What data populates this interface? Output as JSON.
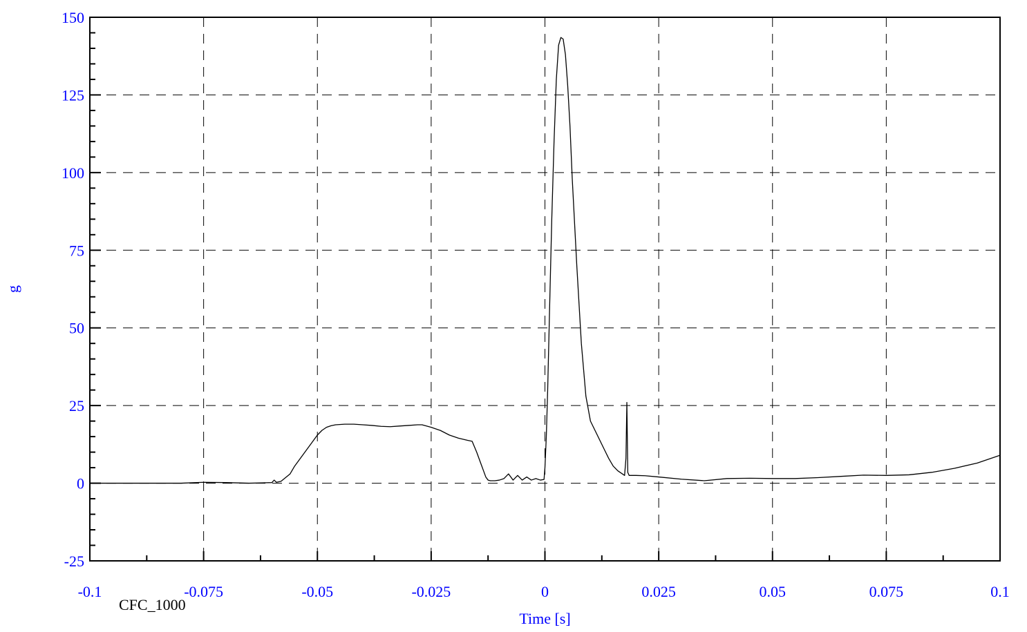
{
  "colors": {
    "axis_text": "#0000ff",
    "frame": "#000000",
    "trace": "#000000",
    "grid": "#000000",
    "annotation": "#000000",
    "background": "#ffffff"
  },
  "chart_data": {
    "type": "line",
    "title": "",
    "xlabel": "Time [s]",
    "ylabel": "g",
    "xlim": [
      -0.1,
      0.1
    ],
    "ylim": [
      -25,
      150
    ],
    "grid": true,
    "grid_style": "dashed",
    "x_ticks": [
      -0.1,
      -0.075,
      -0.05,
      -0.025,
      0,
      0.025,
      0.05,
      0.075,
      0.1
    ],
    "x_tick_labels": [
      "-0.1",
      "-0.075",
      "-0.05",
      "-0.025",
      "0",
      "0.025",
      "0.05",
      "0.075",
      "0.1"
    ],
    "y_ticks": [
      -25,
      0,
      25,
      50,
      75,
      100,
      125,
      150
    ],
    "y_tick_labels": [
      "-25",
      "0",
      "25",
      "50",
      "75",
      "100",
      "125",
      "150"
    ],
    "annotation": "CFC_1000",
    "series": [
      {
        "x": [
          -0.1,
          -0.09,
          -0.08,
          -0.075,
          -0.07,
          -0.065,
          -0.06,
          -0.0595,
          -0.059,
          -0.058,
          -0.057,
          -0.056,
          -0.055,
          -0.054,
          -0.053,
          -0.052,
          -0.051,
          -0.05,
          -0.049,
          -0.048,
          -0.047,
          -0.046,
          -0.044,
          -0.042,
          -0.04,
          -0.038,
          -0.036,
          -0.034,
          -0.032,
          -0.03,
          -0.028,
          -0.027,
          -0.025,
          -0.023,
          -0.021,
          -0.019,
          -0.017,
          -0.016,
          -0.015,
          -0.0145,
          -0.014,
          -0.0135,
          -0.013,
          -0.0125,
          -0.012,
          -0.011,
          -0.01,
          -0.009,
          -0.008,
          -0.007,
          -0.006,
          -0.005,
          -0.004,
          -0.003,
          -0.002,
          -0.001,
          -0.0002,
          0.0,
          0.0003,
          0.0006,
          0.001,
          0.0015,
          0.002,
          0.0025,
          0.003,
          0.0035,
          0.004,
          0.0045,
          0.005,
          0.0055,
          0.006,
          0.007,
          0.008,
          0.009,
          0.01,
          0.011,
          0.012,
          0.013,
          0.014,
          0.015,
          0.016,
          0.017,
          0.0175,
          0.0178,
          0.018,
          0.0182,
          0.0185,
          0.019,
          0.02,
          0.022,
          0.025,
          0.03,
          0.035,
          0.04,
          0.045,
          0.05,
          0.055,
          0.06,
          0.065,
          0.07,
          0.075,
          0.08,
          0.085,
          0.09,
          0.095,
          0.1
        ],
        "y": [
          0,
          0,
          0,
          0.3,
          0.2,
          0,
          0.2,
          1.0,
          0.3,
          0.6,
          1.8,
          3.0,
          5.5,
          7.5,
          9.5,
          11.5,
          13.5,
          15.5,
          17.0,
          18.0,
          18.5,
          18.8,
          19.0,
          19.0,
          18.8,
          18.6,
          18.3,
          18.2,
          18.4,
          18.6,
          18.8,
          18.8,
          18.0,
          17.0,
          15.5,
          14.5,
          13.8,
          13.5,
          10.0,
          8.0,
          6.0,
          4.0,
          2.0,
          1.0,
          0.8,
          0.8,
          1.0,
          1.5,
          3.0,
          1.0,
          2.5,
          1.0,
          2.0,
          1.0,
          1.5,
          1.0,
          1.2,
          5.0,
          15.0,
          30.0,
          55.0,
          85.0,
          110.0,
          130.0,
          141.0,
          143.5,
          143.0,
          138.0,
          128.0,
          115.0,
          98.0,
          70.0,
          45.0,
          28.0,
          20.0,
          17.0,
          14.0,
          11.0,
          8.0,
          5.5,
          4.0,
          3.0,
          2.5,
          8.0,
          26.0,
          3.5,
          2.5,
          2.5,
          2.5,
          2.4,
          2.0,
          1.3,
          0.8,
          1.5,
          1.6,
          1.5,
          1.5,
          1.8,
          2.2,
          2.6,
          2.5,
          2.7,
          3.5,
          4.8,
          6.5,
          9.0
        ]
      }
    ]
  }
}
